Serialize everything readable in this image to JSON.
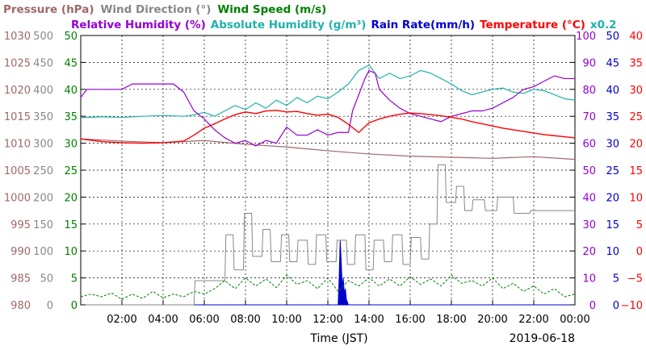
{
  "chart_data": {
    "type": "line",
    "legend": {
      "row1": [
        {
          "key": "pressure",
          "text": "Pressure (hPa)",
          "color": "#a06868"
        },
        {
          "key": "wind_dir",
          "text": "Wind Direction (°)",
          "color": "#888888"
        },
        {
          "key": "wind_speed",
          "text": "Wind Speed (m/s)",
          "color": "#008000"
        }
      ],
      "row2": [
        {
          "key": "rh",
          "text": "Relative Humidity (%)",
          "color": "#9400d3"
        },
        {
          "key": "ah",
          "text": "Absolute Humidity (g/m³)",
          "color": "#20b2aa"
        },
        {
          "key": "rain",
          "text": "Rain Rate(mm/h)",
          "color": "#0000cd"
        },
        {
          "key": "temp",
          "text": "Temperature (°C)",
          "color": "#ff0000"
        },
        {
          "key": "ah_mult",
          "text": "x0.2",
          "color": "#20b2aa"
        }
      ]
    },
    "xlabel": "Time (JST)",
    "date": "2019-06-18",
    "x_unit": "hour",
    "xlim": [
      0,
      24
    ],
    "x_ticks": [
      {
        "v": 2,
        "label": "02:00"
      },
      {
        "v": 4,
        "label": "04:00"
      },
      {
        "v": 6,
        "label": "06:00"
      },
      {
        "v": 8,
        "label": "08:00"
      },
      {
        "v": 10,
        "label": "10:00"
      },
      {
        "v": 12,
        "label": "12:00"
      },
      {
        "v": 14,
        "label": "14:00"
      },
      {
        "v": 16,
        "label": "16:00"
      },
      {
        "v": 18,
        "label": "18:00"
      },
      {
        "v": 20,
        "label": "20:00"
      },
      {
        "v": 22,
        "label": "22:00"
      },
      {
        "v": 24,
        "label": "00:00"
      }
    ],
    "axes": {
      "pressure": {
        "color": "#a06868",
        "min": 980,
        "max": 1030,
        "ticks": [
          "980",
          "985",
          "990",
          "995",
          "1000",
          "1005",
          "1010",
          "1015",
          "1020",
          "1025",
          "1030"
        ]
      },
      "wind_dir": {
        "color": "#888888",
        "min": 0,
        "max": 500,
        "ticks": [
          "0",
          "50",
          "100",
          "150",
          "200",
          "250",
          "300",
          "350",
          "400",
          "450",
          "500"
        ]
      },
      "wind_speed": {
        "color": "#008000",
        "min": 0,
        "max": 50,
        "ticks": [
          "0",
          "5",
          "10",
          "15",
          "20",
          "25",
          "30",
          "35",
          "40",
          "45",
          "50"
        ]
      },
      "rh": {
        "color": "#9400d3",
        "min": 0,
        "max": 100,
        "ticks": [
          "0",
          "10",
          "20",
          "30",
          "40",
          "50",
          "60",
          "70",
          "80",
          "90",
          "100"
        ]
      },
      "rain": {
        "color": "#0000cd",
        "min": 0,
        "max": 50,
        "ticks": [
          "0",
          "5",
          "10",
          "15",
          "20",
          "25",
          "30",
          "35",
          "40",
          "45",
          "50"
        ]
      },
      "temp": {
        "color": "#ff0000",
        "min": -10,
        "max": 40,
        "ticks": [
          "−10",
          "−5",
          "0",
          "5",
          "10",
          "15",
          "20",
          "25",
          "30",
          "35",
          "40"
        ]
      }
    },
    "series": [
      {
        "key": "pressure",
        "axis": "pressure",
        "color": "#a06868",
        "width": 1.2,
        "x": [
          0,
          2,
          4,
          6,
          8,
          10,
          12,
          14,
          16,
          18,
          20,
          22,
          24
        ],
        "y": [
          1010.8,
          1010.4,
          1010.1,
          1010.5,
          1009.8,
          1009.3,
          1008.6,
          1008.0,
          1007.6,
          1007.4,
          1007.2,
          1007.5,
          1007.0
        ]
      },
      {
        "key": "temp",
        "axis": "temp",
        "color": "#ff0000",
        "width": 1.4,
        "x": [
          0,
          1,
          2,
          3,
          4,
          5,
          5.5,
          6,
          6.5,
          7,
          7.5,
          8,
          8.5,
          9,
          9.5,
          10,
          10.5,
          11,
          11.5,
          12,
          12.5,
          13,
          13.5,
          14,
          14.5,
          15,
          15.5,
          16,
          16.5,
          17,
          17.5,
          18,
          18.5,
          19,
          19.5,
          20,
          20.5,
          21,
          21.5,
          22,
          22.5,
          23,
          23.5,
          24
        ],
        "y": [
          20.8,
          20.3,
          20.1,
          20.0,
          20.1,
          20.4,
          21.5,
          22.8,
          23.6,
          24.5,
          25.3,
          25.8,
          25.5,
          26.0,
          26.1,
          25.8,
          25.9,
          25.5,
          25.2,
          25.4,
          24.8,
          23.5,
          22.0,
          23.8,
          24.5,
          25.0,
          25.4,
          25.6,
          25.5,
          25.3,
          25.1,
          24.8,
          24.5,
          24.0,
          23.6,
          23.2,
          22.8,
          22.5,
          22.2,
          21.9,
          21.6,
          21.4,
          21.2,
          21.0
        ]
      },
      {
        "key": "rh",
        "axis": "rh",
        "color": "#9400d3",
        "width": 1.2,
        "x": [
          0,
          0.3,
          1,
          2,
          2.5,
          3,
          4,
          4.5,
          5,
          5.5,
          6,
          6.5,
          7,
          7.5,
          8,
          8.5,
          9,
          9.5,
          10,
          10.5,
          11,
          11.5,
          12,
          12.5,
          13,
          13.2,
          13.5,
          13.8,
          14,
          14.3,
          14.5,
          15,
          15.5,
          16,
          16.5,
          17,
          17.5,
          18,
          18.5,
          19,
          19.5,
          20,
          20.5,
          21,
          21.5,
          22,
          22.5,
          23,
          23.5,
          24
        ],
        "y": [
          77,
          80,
          80,
          80,
          82,
          82,
          82,
          82,
          79,
          72,
          69,
          65,
          62,
          60,
          61,
          59,
          61,
          60,
          66,
          63,
          63,
          65,
          63,
          64,
          64,
          72,
          78,
          84,
          87,
          86,
          80,
          76,
          73,
          71,
          70,
          69,
          68,
          70,
          71,
          72,
          72,
          73,
          75,
          77,
          80,
          81,
          83,
          85,
          84,
          84
        ]
      },
      {
        "key": "ah",
        "axis": "rh",
        "color": "#20b2aa",
        "width": 1.2,
        "x": [
          0,
          1,
          2,
          3,
          4,
          5,
          5.5,
          6,
          6.5,
          7,
          7.5,
          8,
          8.5,
          9,
          9.5,
          10,
          10.5,
          11,
          11.5,
          12,
          12.5,
          13,
          13.5,
          14,
          14.5,
          15,
          15.5,
          16,
          16.5,
          17,
          17.5,
          18,
          18.5,
          19,
          19.5,
          20,
          20.5,
          21,
          21.5,
          22,
          22.5,
          23,
          23.5,
          24
        ],
        "y": [
          69.5,
          69.8,
          69.6,
          70.0,
          70.3,
          70.0,
          70.5,
          71.5,
          70.0,
          72.0,
          74.0,
          72.5,
          75.0,
          73.0,
          76.0,
          74.0,
          77.0,
          75.0,
          77.5,
          76.5,
          79.0,
          82.0,
          87.0,
          89.0,
          84.0,
          86.0,
          84.0,
          85.0,
          87.0,
          86.0,
          84.0,
          82.0,
          79.5,
          78.0,
          79.0,
          80.0,
          80.5,
          79.0,
          78.5,
          80.0,
          79.5,
          78.0,
          76.5,
          76.0
        ]
      },
      {
        "key": "wind_dir",
        "axis": "wind_dir",
        "color": "#888888",
        "width": 1.0,
        "x": [
          0,
          5.5,
          5.55,
          7.0,
          7.05,
          7.4,
          7.45,
          7.9,
          7.95,
          8.3,
          8.35,
          8.8,
          8.85,
          9.2,
          9.25,
          9.7,
          9.75,
          10.1,
          10.15,
          10.5,
          10.55,
          11.0,
          11.05,
          11.4,
          11.45,
          11.9,
          11.95,
          12.4,
          12.45,
          12.9,
          12.95,
          13.3,
          13.35,
          13.8,
          13.85,
          14.2,
          14.25,
          14.7,
          14.75,
          15.1,
          15.15,
          15.6,
          15.65,
          16.0,
          16.05,
          16.5,
          16.55,
          16.9,
          16.95,
          17.3,
          17.35,
          17.7,
          17.75,
          18.2,
          18.25,
          18.6,
          18.65,
          19.0,
          19.05,
          19.6,
          19.65,
          20.2,
          20.25,
          21.0,
          21.05,
          21.8,
          21.85,
          24
        ],
        "y": [
          0,
          0,
          45,
          45,
          130,
          130,
          65,
          65,
          170,
          170,
          90,
          90,
          140,
          140,
          80,
          80,
          130,
          130,
          80,
          80,
          120,
          120,
          75,
          75,
          130,
          130,
          80,
          80,
          120,
          120,
          75,
          75,
          130,
          130,
          65,
          65,
          120,
          120,
          80,
          80,
          130,
          130,
          75,
          75,
          125,
          125,
          85,
          85,
          150,
          150,
          260,
          260,
          190,
          190,
          220,
          220,
          175,
          175,
          195,
          195,
          175,
          175,
          200,
          200,
          170,
          170,
          175,
          175
        ]
      },
      {
        "key": "wind_speed",
        "axis": "wind_speed",
        "color": "#008000",
        "width": 1.0,
        "dash": "3 2",
        "x": [
          0,
          0.5,
          1,
          1.5,
          2,
          2.5,
          3,
          3.5,
          4,
          4.5,
          5,
          5.5,
          6,
          6.5,
          7,
          7.5,
          8,
          8.5,
          9,
          9.5,
          10,
          10.5,
          11,
          11.5,
          12,
          12.5,
          13,
          13.5,
          14,
          14.5,
          15,
          15.5,
          16,
          16.5,
          17,
          17.5,
          18,
          18.5,
          19,
          19.5,
          20,
          20.5,
          21,
          21.5,
          22,
          22.5,
          23,
          23.5,
          24
        ],
        "y": [
          1.5,
          2.0,
          1.5,
          2.2,
          1.0,
          2.0,
          1.2,
          2.5,
          1.3,
          2.0,
          1.5,
          2.5,
          2.0,
          3.0,
          4.5,
          3.0,
          5.0,
          3.5,
          4.8,
          3.2,
          5.5,
          3.8,
          4.5,
          3.0,
          5.0,
          2.5,
          4.5,
          3.5,
          5.0,
          3.5,
          4.8,
          3.5,
          5.2,
          3.8,
          4.8,
          3.5,
          5.5,
          4.0,
          4.5,
          3.5,
          5.0,
          3.0,
          4.0,
          2.5,
          3.5,
          2.0,
          3.0,
          1.5,
          2.0
        ]
      },
      {
        "key": "rain",
        "axis": "rain",
        "color": "#0000cd",
        "width": 1.0,
        "fill": true,
        "x": [
          0,
          12.5,
          12.55,
          12.6,
          12.65,
          12.7,
          12.75,
          12.8,
          12.85,
          12.9,
          13.0,
          24
        ],
        "y": [
          0,
          0,
          5,
          12,
          8,
          3,
          5,
          2,
          3,
          1,
          0,
          0
        ]
      }
    ]
  }
}
